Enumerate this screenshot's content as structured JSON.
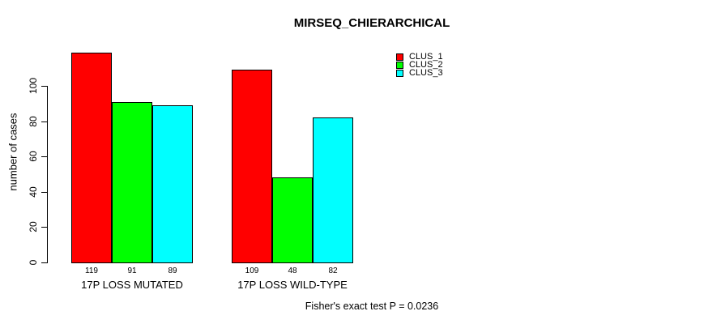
{
  "chart_data": {
    "type": "bar",
    "title": "MIRSEQ_CHIERARCHICAL",
    "ylabel": "number of cases",
    "xlabel": "",
    "annotation": "Fisher's exact test P = 0.0236",
    "categories": [
      "17P LOSS MUTATED",
      "17P LOSS WILD-TYPE"
    ],
    "series": [
      {
        "name": "CLUS_1",
        "color": "#FF0000",
        "values": [
          119,
          109
        ]
      },
      {
        "name": "CLUS_2",
        "color": "#00FF00",
        "values": [
          91,
          48
        ]
      },
      {
        "name": "CLUS_3",
        "color": "#00FFFF",
        "values": [
          89,
          82
        ]
      }
    ],
    "yticks": [
      0,
      20,
      40,
      60,
      80,
      100
    ],
    "ylim": [
      0,
      122
    ],
    "grid": false,
    "bar_value_labels": true,
    "legend_position": "top-right",
    "bar_border_color": "#000000",
    "background_color": "#FFFFFF",
    "text_color": "#000000"
  }
}
